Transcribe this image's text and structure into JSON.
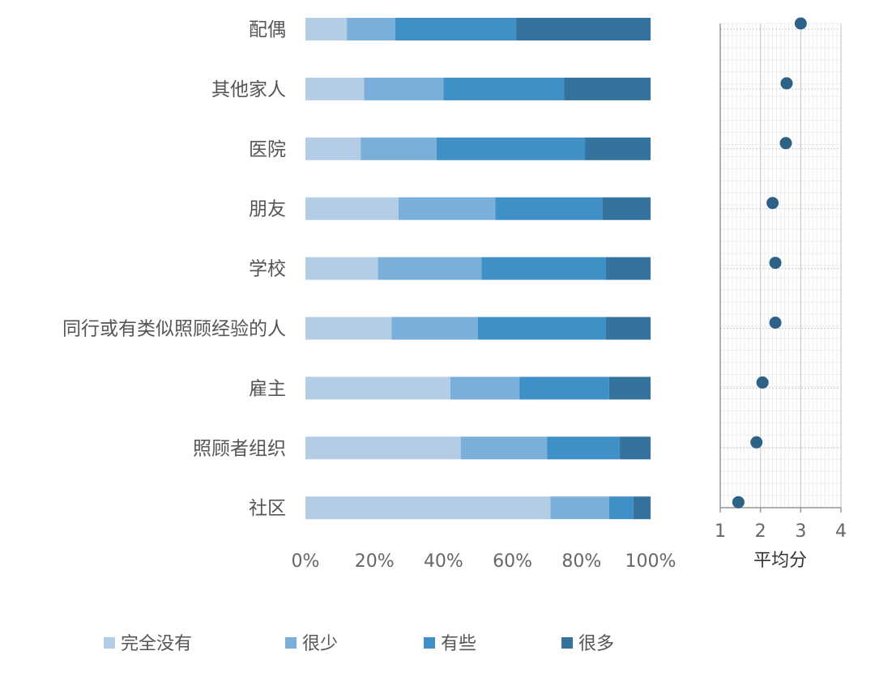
{
  "colors": {
    "levels": [
      "#b4cde6",
      "#7aafd9",
      "#3f90c7",
      "#35739f"
    ],
    "dot": "#2d6185",
    "grid_minor": "#eeeeee",
    "grid_major": "#cccccc",
    "axis": "#999999"
  },
  "chart_data": [
    {
      "type": "bar",
      "orientation": "horizontal",
      "stacked": "percent",
      "categories": [
        "配偶",
        "其他家人",
        "医院",
        "朋友",
        "学校",
        "同行或有类似照顾经验的人",
        "雇主",
        "照顾者组织",
        "社区"
      ],
      "series": [
        {
          "name": "完全没有",
          "values": [
            12,
            17,
            16,
            27,
            21,
            25,
            42,
            45,
            71
          ]
        },
        {
          "name": "很少",
          "values": [
            14,
            23,
            22,
            28,
            30,
            25,
            20,
            25,
            17
          ]
        },
        {
          "name": "有些",
          "values": [
            35,
            35,
            43,
            31,
            36,
            37,
            26,
            21,
            7
          ]
        },
        {
          "name": "很多",
          "values": [
            39,
            25,
            19,
            14,
            13,
            13,
            12,
            9,
            5
          ]
        }
      ],
      "x_ticks": [
        "0%",
        "20%",
        "40%",
        "60%",
        "80%",
        "100%"
      ],
      "xlim": [
        0,
        100
      ],
      "legend": "bottom"
    },
    {
      "type": "scatter",
      "categories": [
        "配偶",
        "其他家人",
        "医院",
        "朋友",
        "学校",
        "同行或有类似照顾经验的人",
        "雇主",
        "照顾者组织",
        "社区"
      ],
      "values": [
        3.0,
        2.65,
        2.63,
        2.3,
        2.37,
        2.37,
        2.05,
        1.9,
        1.45
      ],
      "xlabel": "平均分",
      "x_ticks": [
        "1",
        "2",
        "3",
        "4"
      ],
      "xlim": [
        1,
        4
      ],
      "grid": true
    }
  ]
}
